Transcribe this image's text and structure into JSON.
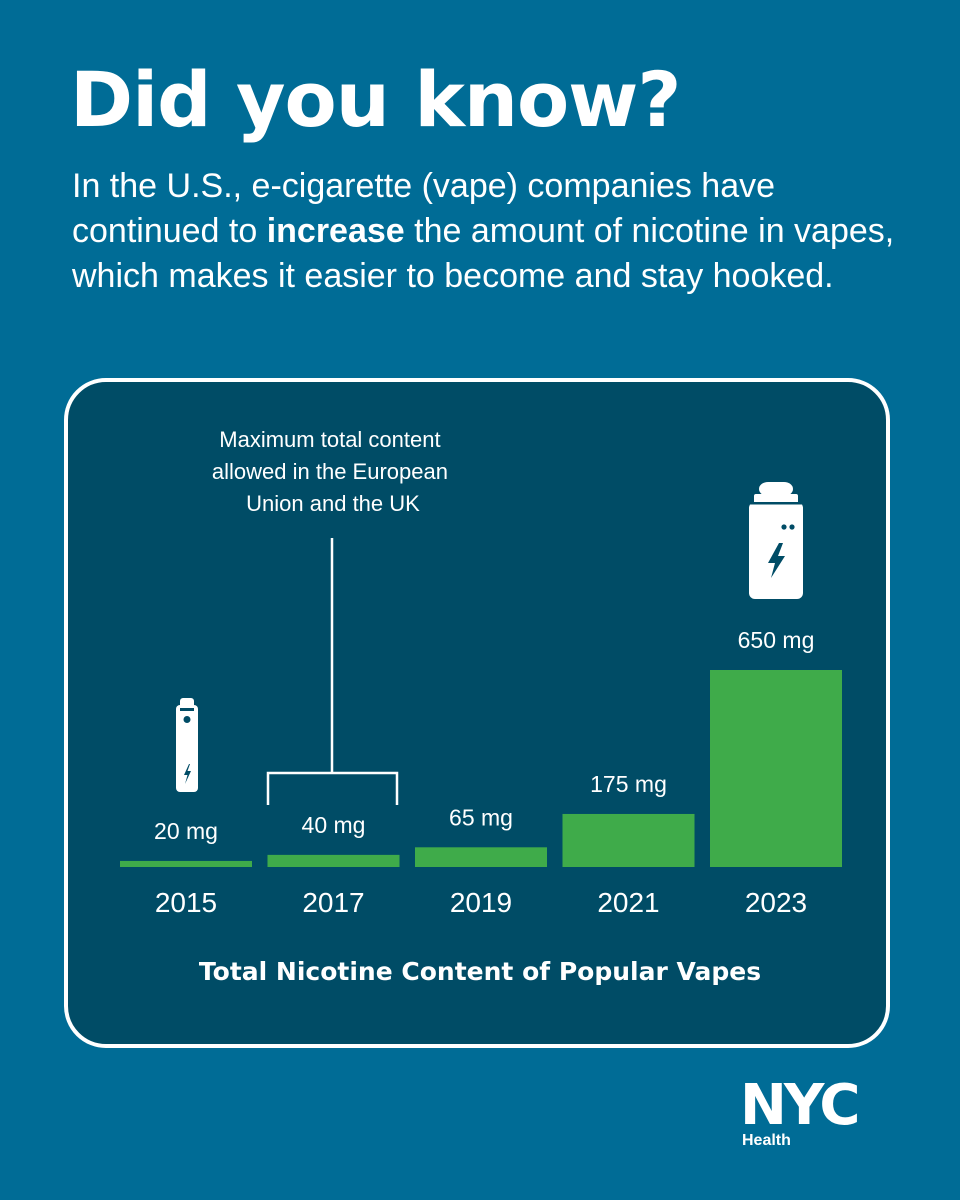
{
  "headline": "Did you know?",
  "intro": {
    "before": "In the U.S., e-cigarette (vape) companies have continued to ",
    "emphasis": "increase",
    "after": " the amount of nicotine in vapes, which makes it easier to become and stay hooked."
  },
  "chart_data": {
    "type": "bar",
    "title": "Total Nicotine Content of Popular Vapes",
    "categories": [
      "2015",
      "2017",
      "2019",
      "2021",
      "2023"
    ],
    "values": [
      20,
      40,
      65,
      175,
      650
    ],
    "value_labels": [
      "20 mg",
      "40 mg",
      "65 mg",
      "175 mg",
      "650 mg"
    ],
    "unit": "mg",
    "ylim": [
      0,
      650
    ],
    "grid": false,
    "bar_color": "#3fab4a",
    "annotation": {
      "category": "2017",
      "lines": [
        "Maximum total content",
        "allowed in the European",
        "Union and the UK"
      ]
    }
  },
  "logo": {
    "word": "NYC",
    "sub": "Health"
  },
  "colors": {
    "background": "#006c96",
    "panel": "#004c66",
    "text": "#ffffff",
    "bar": "#3fab4a"
  },
  "icons": [
    "vape-pen-icon",
    "box-mod-vape-icon"
  ]
}
